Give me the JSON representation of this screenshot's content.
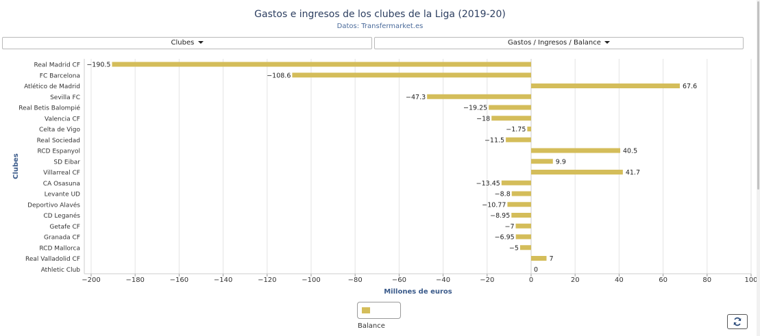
{
  "header": {
    "title": "Gastos e ingresos de los clubes de la Liga (2019-20)",
    "subtitle": "Datos: Transfermarket.es"
  },
  "controls": {
    "clubes_label": "Clubes",
    "metric_label": "Gastos / Ingresos / Balance"
  },
  "legend": {
    "label": "Balance"
  },
  "icons": {
    "refresh": "refresh-icon"
  },
  "colors": {
    "bar": "#d4bd5a",
    "axis_title": "#3a5a8a"
  },
  "chart_data": {
    "type": "bar",
    "orientation": "horizontal",
    "ylabel": "Clubes",
    "xlabel": "Millones de euros",
    "xlim": [
      -200,
      100
    ],
    "xticks": [
      -200,
      -180,
      -160,
      -140,
      -120,
      -100,
      -80,
      -60,
      -40,
      -20,
      0,
      20,
      40,
      60,
      80,
      100
    ],
    "grid": true,
    "legend_position": "bottom",
    "categories": [
      "Real Madrid CF",
      "FC Barcelona",
      "Atlético de Madrid",
      "Sevilla FC",
      "Real Betis Balompié",
      "Valencia CF",
      "Celta de Vigo",
      "Real Sociedad",
      "RCD Espanyol",
      "SD Eibar",
      "Villarreal CF",
      "CA Osasuna",
      "Levante UD",
      "Deportivo Alavés",
      "CD Leganés",
      "Getafe CF",
      "Granada CF",
      "RCD Mallorca",
      "Real Valladolid CF",
      "Athletic Club"
    ],
    "series": [
      {
        "name": "Balance",
        "values": [
          -190.5,
          -108.6,
          67.6,
          -47.3,
          -19.25,
          -18,
          -1.75,
          -11.5,
          40.5,
          9.9,
          41.7,
          -13.45,
          -8.8,
          -10.77,
          -8.95,
          -7,
          -6.95,
          -5,
          7,
          0
        ],
        "labels": [
          "−190.5",
          "−108.6",
          "67.6",
          "−47.3",
          "−19.25",
          "−18",
          "−1.75",
          "−11.5",
          "40.5",
          "9.9",
          "41.7",
          "−13.45",
          "−8.8",
          "−10.77",
          "−8.95",
          "−7",
          "−6.95",
          "−5",
          "7",
          "0"
        ]
      }
    ],
    "tick_labels": [
      "−200",
      "−180",
      "−160",
      "−140",
      "−120",
      "−100",
      "−80",
      "−60",
      "−40",
      "−20",
      "0",
      "20",
      "40",
      "60",
      "80",
      "100"
    ]
  }
}
